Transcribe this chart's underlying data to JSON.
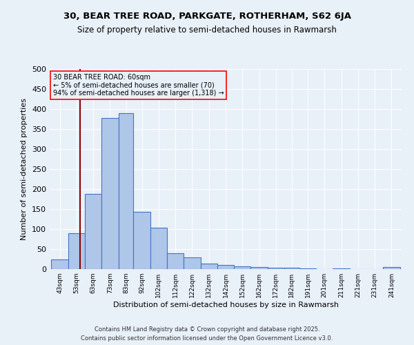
{
  "title": "30, BEAR TREE ROAD, PARKGATE, ROTHERHAM, S62 6JA",
  "subtitle": "Size of property relative to semi-detached houses in Rawmarsh",
  "xlabel": "Distribution of semi-detached houses by size in Rawmarsh",
  "ylabel": "Number of semi-detached properties",
  "footnote1": "Contains HM Land Registry data © Crown copyright and database right 2025.",
  "footnote2": "Contains public sector information licensed under the Open Government Licence v3.0.",
  "annotation_title": "30 BEAR TREE ROAD: 60sqm",
  "annotation_line1": "← 5% of semi-detached houses are smaller (70)",
  "annotation_line2": "94% of semi-detached houses are larger (1,318) →",
  "bar_color": "#aec6e8",
  "bar_edge_color": "#4472c4",
  "bg_color": "#e8f0f8",
  "grid_color": "#ffffff",
  "redline_x": 60,
  "categories": [
    "43sqm",
    "53sqm",
    "63sqm",
    "73sqm",
    "83sqm",
    "92sqm",
    "102sqm",
    "112sqm",
    "122sqm",
    "132sqm",
    "142sqm",
    "152sqm",
    "162sqm",
    "172sqm",
    "182sqm",
    "191sqm",
    "201sqm",
    "211sqm",
    "221sqm",
    "231sqm",
    "241sqm"
  ],
  "values": [
    25,
    90,
    188,
    378,
    390,
    143,
    103,
    40,
    30,
    13,
    10,
    7,
    5,
    3,
    3,
    1,
    0,
    1,
    0,
    0,
    5
  ],
  "bin_edges": [
    43,
    53,
    63,
    73,
    83,
    92,
    102,
    112,
    122,
    132,
    142,
    152,
    162,
    172,
    182,
    191,
    201,
    211,
    221,
    231,
    241,
    251
  ],
  "ylim": [
    0,
    500
  ],
  "yticks": [
    0,
    50,
    100,
    150,
    200,
    250,
    300,
    350,
    400,
    450,
    500
  ]
}
